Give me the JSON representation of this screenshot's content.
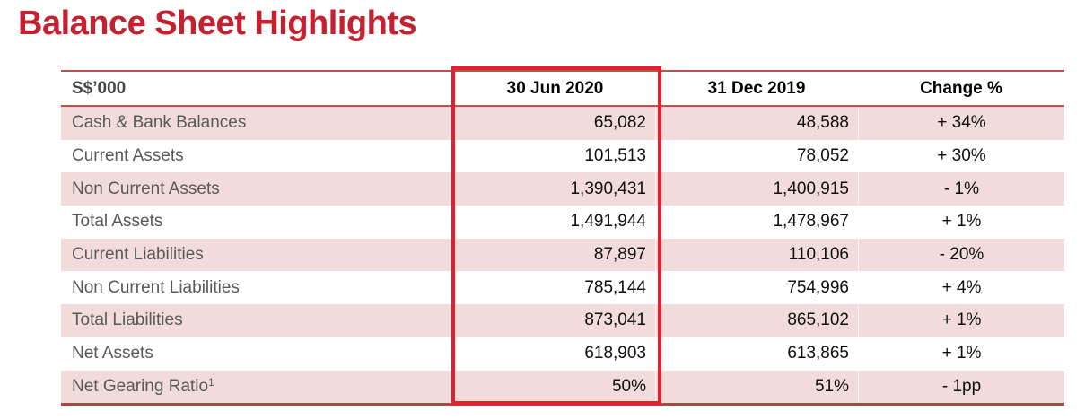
{
  "title": "Balance Sheet Highlights",
  "table": {
    "unit_header": "S$’000",
    "columns": [
      "30 Jun 2020",
      "31 Dec 2019",
      "Change %"
    ],
    "highlighted_column": "30 Jun 2020",
    "rows": [
      {
        "label": "Cash & Bank Balances",
        "jun2020": "65,082",
        "dec2019": "48,588",
        "change": "+ 34%"
      },
      {
        "label": "Current Assets",
        "jun2020": "101,513",
        "dec2019": "78,052",
        "change": "+ 30%"
      },
      {
        "label": "Non Current Assets",
        "jun2020": "1,390,431",
        "dec2019": "1,400,915",
        "change": "- 1%"
      },
      {
        "label": "Total Assets",
        "jun2020": "1,491,944",
        "dec2019": "1,478,967",
        "change": "+ 1%"
      },
      {
        "label": "Current Liabilities",
        "jun2020": "87,897",
        "dec2019": "110,106",
        "change": "- 20%"
      },
      {
        "label": "Non Current Liabilities",
        "jun2020": "785,144",
        "dec2019": "754,996",
        "change": "+ 4%"
      },
      {
        "label": "Total Liabilities",
        "jun2020": "873,041",
        "dec2019": "865,102",
        "change": "+ 1%"
      },
      {
        "label": "Net Assets",
        "jun2020": "618,903",
        "dec2019": "613,865",
        "change": "+ 1%"
      },
      {
        "label": "Net Gearing Ratio",
        "footnote": "1",
        "jun2020": "50%",
        "dec2019": "51%",
        "change": "- 1pp"
      }
    ]
  },
  "colors": {
    "title_red": "#C3212F",
    "highlight_border_red": "#EC1C2D",
    "row_pink": "#F2DCDB",
    "table_line_red": "#C0504D",
    "table_bottom_line_red": "#AD4442",
    "label_gray": "#595959"
  }
}
